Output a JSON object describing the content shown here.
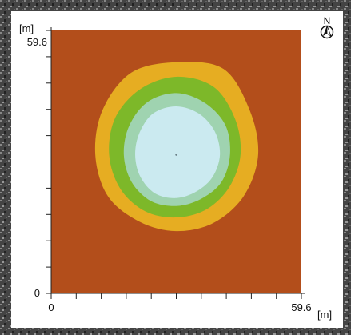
{
  "chart_data": {
    "type": "heatmap",
    "x_unit": "[m]",
    "y_unit": "[m]",
    "xlim": [
      0,
      59.6
    ],
    "ylim": [
      0,
      59.6
    ],
    "x_tick_labels": [
      "0",
      "59.6"
    ],
    "y_tick_labels": [
      "0",
      "59.6"
    ],
    "north_label": "N",
    "zones": [
      {
        "color": "#b34e1b"
      },
      {
        "color": "#e6ad22"
      },
      {
        "color": "#7db829"
      },
      {
        "color": "#9fd3b0"
      },
      {
        "color": "#cbeaf0"
      }
    ],
    "center": [
      29.8,
      31.4
    ],
    "zone_radii_m": [
      [
        19.5,
        20.2,
        22.5,
        21.0,
        21.5,
        20.3,
        19.3,
        18.8,
        17.5,
        17.3,
        17.8,
        18.6
      ],
      [
        15.3,
        16.2,
        17.8,
        17.7,
        17.2,
        16.8,
        16.0,
        15.4,
        14.8,
        14.2,
        14.3,
        14.6
      ],
      [
        12.8,
        13.5,
        13.6,
        14.0,
        13.8,
        13.0,
        12.5,
        12.3,
        12.1,
        11.6,
        11.6,
        12.4
      ],
      [
        10.4,
        10.6,
        10.8,
        11.0,
        10.9,
        10.1,
        9.8,
        9.9,
        10.1,
        9.8,
        9.6,
        10.0
      ]
    ],
    "center_marker": [
      29.8,
      31.4
    ]
  }
}
